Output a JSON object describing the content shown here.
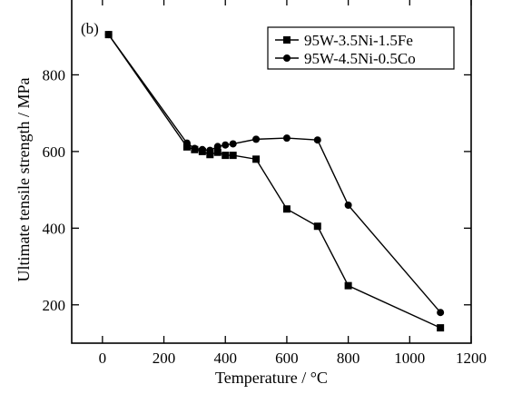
{
  "chart_data": {
    "type": "line",
    "panel_label": "(b)",
    "xlabel": "Temperature / °C",
    "ylabel": "Ultimate tensile strength / MPa",
    "xlim": [
      -100,
      1200
    ],
    "ylim": [
      100,
      1000
    ],
    "xticks": [
      0,
      200,
      400,
      600,
      800,
      1000,
      1200
    ],
    "xtick_labels": [
      "0",
      "200",
      "400",
      "600",
      "800",
      "1000",
      "1200"
    ],
    "yticks": [
      200,
      400,
      600,
      800
    ],
    "ytick_labels": [
      "200",
      "400",
      "600",
      "800"
    ],
    "grid": false,
    "legend_position": "top-right",
    "series": [
      {
        "name": "95W-3.5Ni-1.5Fe",
        "marker": "square",
        "x": [
          20,
          275,
          300,
          325,
          350,
          375,
          400,
          425,
          500,
          600,
          700,
          800,
          1100
        ],
        "y": [
          905,
          612,
          605,
          600,
          592,
          598,
          590,
          590,
          580,
          450,
          405,
          250,
          140
        ]
      },
      {
        "name": "95W-4.5Ni-0.5Co",
        "marker": "circle",
        "x": [
          20,
          275,
          300,
          325,
          350,
          375,
          400,
          425,
          500,
          600,
          700,
          800,
          1100
        ],
        "y": [
          905,
          622,
          608,
          605,
          603,
          613,
          617,
          620,
          632,
          635,
          630,
          460,
          180
        ]
      }
    ]
  }
}
